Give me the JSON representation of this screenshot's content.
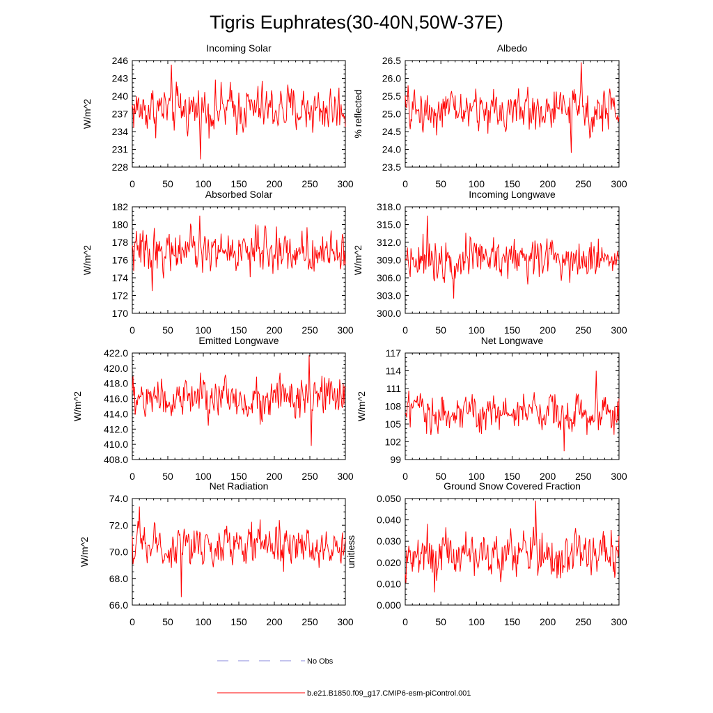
{
  "figure": {
    "title": "Tigris Euphrates(30-40N,50W-37E)",
    "legend": [
      {
        "label": "No Obs",
        "color": "#8888dd",
        "style": "dashed"
      },
      {
        "label": "b.e21.B1850.f09_g17.CMIP6-esm-piControl.001",
        "color": "#ff0000",
        "style": "solid"
      }
    ]
  },
  "chart_data": [
    {
      "type": "line",
      "title": "Incoming Solar",
      "xlabel": "",
      "ylabel": "W/m^2",
      "xlim": [
        0,
        300
      ],
      "ylim": [
        228,
        246
      ],
      "xticks": [
        "0",
        "50",
        "100",
        "150",
        "200",
        "250",
        "300"
      ],
      "yticks": [
        "228",
        "231",
        "234",
        "237",
        "240",
        "243",
        "246"
      ],
      "series_mean": 237.8,
      "series_amp": 3.4,
      "series_min": 229.3,
      "series_max": 245.3,
      "series_name": "b.e21.B1850.f09_g17.CMIP6-esm-piControl.001",
      "color": "#ff0000"
    },
    {
      "type": "line",
      "title": "Albedo",
      "xlabel": "",
      "ylabel": "% reflected",
      "xlim": [
        0,
        300
      ],
      "ylim": [
        23.5,
        26.5
      ],
      "xticks": [
        "0",
        "50",
        "100",
        "150",
        "200",
        "250",
        "300"
      ],
      "yticks": [
        "23.5",
        "24.0",
        "24.5",
        "25.0",
        "25.5",
        "26.0",
        "26.5"
      ],
      "series_mean": 25.1,
      "series_amp": 0.5,
      "series_min": 23.9,
      "series_max": 26.45,
      "series_name": "b.e21.B1850.f09_g17.CMIP6-esm-piControl.001",
      "color": "#ff0000"
    },
    {
      "type": "line",
      "title": "Absorbed Solar",
      "xlabel": "",
      "ylabel": "W/m^2",
      "xlim": [
        0,
        300
      ],
      "ylim": [
        170,
        182
      ],
      "xticks": [
        "0",
        "50",
        "100",
        "150",
        "200",
        "250",
        "300"
      ],
      "yticks": [
        "170",
        "172",
        "174",
        "176",
        "178",
        "180",
        "182"
      ],
      "series_mean": 177.0,
      "series_amp": 2.0,
      "series_min": 172.5,
      "series_max": 181.0,
      "series_name": "b.e21.B1850.f09_g17.CMIP6-esm-piControl.001",
      "color": "#ff0000"
    },
    {
      "type": "line",
      "title": "Incoming Longwave",
      "xlabel": "",
      "ylabel": "W/m^2",
      "xlim": [
        0,
        300
      ],
      "ylim": [
        300.0,
        318.0
      ],
      "xticks": [
        "0",
        "50",
        "100",
        "150",
        "200",
        "250",
        "300"
      ],
      "yticks": [
        "300.0",
        "303.0",
        "306.0",
        "309.0",
        "312.0",
        "315.0",
        "318.0"
      ],
      "series_mean": 309.5,
      "series_amp": 3.0,
      "series_min": 302.5,
      "series_max": 316.5,
      "series_name": "b.e21.B1850.f09_g17.CMIP6-esm-piControl.001",
      "color": "#ff0000"
    },
    {
      "type": "line",
      "title": "Emitted Longwave",
      "xlabel": "",
      "ylabel": "W/m^2",
      "xlim": [
        0,
        300
      ],
      "ylim": [
        408.0,
        422.0
      ],
      "xticks": [
        "0",
        "50",
        "100",
        "150",
        "200",
        "250",
        "300"
      ],
      "yticks": [
        "408.0",
        "410.0",
        "412.0",
        "414.0",
        "416.0",
        "418.0",
        "420.0",
        "422.0"
      ],
      "series_mean": 416.0,
      "series_amp": 2.4,
      "series_min": 409.8,
      "series_max": 421.7,
      "series_name": "b.e21.B1850.f09_g17.CMIP6-esm-piControl.001",
      "color": "#ff0000"
    },
    {
      "type": "line",
      "title": "Net Longwave",
      "xlabel": "",
      "ylabel": "W/m^2",
      "xlim": [
        0,
        300
      ],
      "ylim": [
        99,
        117
      ],
      "xticks": [
        "0",
        "50",
        "100",
        "150",
        "200",
        "250",
        "300"
      ],
      "yticks": [
        "99",
        "102",
        "105",
        "108",
        "111",
        "114",
        "117"
      ],
      "series_mean": 107.0,
      "series_amp": 2.8,
      "series_min": 100.4,
      "series_max": 114.0,
      "series_name": "b.e21.B1850.f09_g17.CMIP6-esm-piControl.001",
      "color": "#ff0000"
    },
    {
      "type": "line",
      "title": "Net Radiation",
      "xlabel": "",
      "ylabel": "W/m^2",
      "xlim": [
        0,
        300
      ],
      "ylim": [
        66.0,
        74.0
      ],
      "xticks": [
        "0",
        "50",
        "100",
        "150",
        "200",
        "250",
        "300"
      ],
      "yticks": [
        "66.0",
        "68.0",
        "70.0",
        "72.0",
        "74.0"
      ],
      "series_mean": 70.4,
      "series_amp": 1.3,
      "series_min": 66.6,
      "series_max": 73.4,
      "series_name": "b.e21.B1850.f09_g17.CMIP6-esm-piControl.001",
      "color": "#ff0000"
    },
    {
      "type": "line",
      "title": "Ground Snow Covered Fraction",
      "xlabel": "",
      "ylabel": "unitless",
      "xlim": [
        0,
        300
      ],
      "ylim": [
        0.0,
        0.05
      ],
      "xticks": [
        "0",
        "50",
        "100",
        "150",
        "200",
        "250",
        "300"
      ],
      "yticks": [
        "0.000",
        "0.010",
        "0.020",
        "0.030",
        "0.040",
        "0.050"
      ],
      "series_mean": 0.024,
      "series_amp": 0.009,
      "series_min": 0.006,
      "series_max": 0.049,
      "series_name": "b.e21.B1850.f09_g17.CMIP6-esm-piControl.001",
      "color": "#ff0000"
    }
  ]
}
